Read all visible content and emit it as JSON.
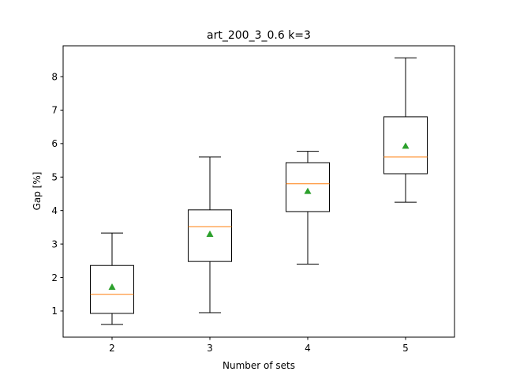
{
  "chart_data": {
    "type": "box",
    "title": "art_200_3_0.6   k=3",
    "xlabel": "Number of sets",
    "ylabel": "Gap [%]",
    "categories": [
      "2",
      "3",
      "4",
      "5"
    ],
    "xlim": [
      0.5,
      4.5
    ],
    "ylim": [
      0.22,
      8.92
    ],
    "yticks": [
      1,
      2,
      3,
      4,
      5,
      6,
      7,
      8
    ],
    "grid": false,
    "boxes": [
      {
        "category": "2",
        "whisker_low": 0.6,
        "q1": 0.93,
        "median": 1.5,
        "q3": 2.36,
        "whisker_high": 3.33,
        "mean": 1.72
      },
      {
        "category": "3",
        "whisker_low": 0.95,
        "q1": 2.48,
        "median": 3.52,
        "q3": 4.02,
        "whisker_high": 5.6,
        "mean": 3.3
      },
      {
        "category": "4",
        "whisker_low": 2.4,
        "q1": 3.97,
        "median": 4.8,
        "q3": 5.43,
        "whisker_high": 5.77,
        "mean": 4.58
      },
      {
        "category": "5",
        "whisker_low": 4.25,
        "q1": 5.1,
        "median": 5.6,
        "q3": 6.8,
        "whisker_high": 8.56,
        "mean": 5.93
      }
    ],
    "colors": {
      "box": "#000000",
      "median": "#ff7f0e",
      "mean": "#2ca02c"
    }
  }
}
